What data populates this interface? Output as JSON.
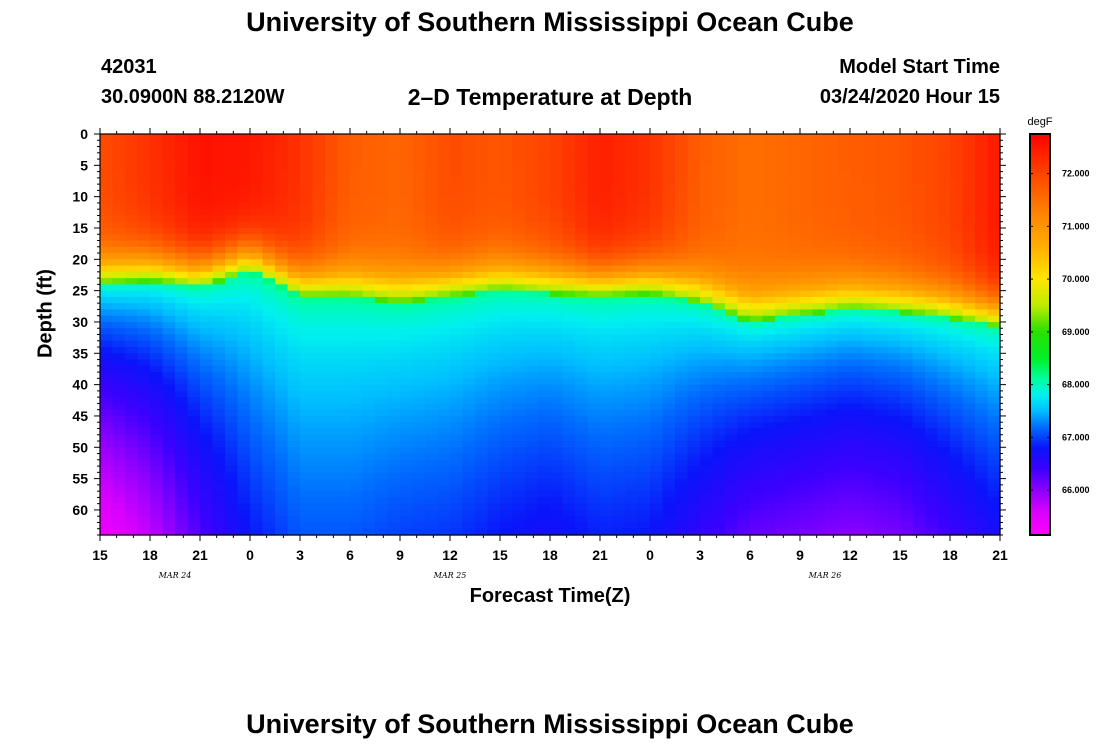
{
  "title_top": "University of Southern Mississippi Ocean Cube",
  "title_bottom": "University of Southern Mississippi Ocean Cube",
  "station": {
    "id": "42031",
    "coords": "30.0900N 88.2120W"
  },
  "model": {
    "label": "Model Start Time",
    "start": "03/24/2020 Hour 15"
  },
  "chart_data": {
    "type": "heatmap",
    "title": "2–D Temperature at Depth",
    "xlabel": "Forecast Time(Z)",
    "ylabel": "Depth (ft)",
    "x_hours": [
      0,
      3,
      6,
      9,
      12,
      15,
      18,
      21,
      24,
      27,
      30,
      33,
      36,
      39,
      42,
      45,
      48,
      51,
      54
    ],
    "x_tick_labels": [
      "15",
      "18",
      "21",
      "0",
      "3",
      "6",
      "9",
      "12",
      "15",
      "18",
      "21",
      "0",
      "3",
      "6",
      "9",
      "12",
      "15",
      "18",
      "21"
    ],
    "date_labels": [
      {
        "text": "MAR 24",
        "hour": 4.5
      },
      {
        "text": "MAR 25",
        "hour": 21
      },
      {
        "text": "MAR 26",
        "hour": 43.5
      }
    ],
    "y_ticks": [
      0,
      5,
      10,
      15,
      20,
      25,
      30,
      35,
      40,
      45,
      50,
      55,
      60
    ],
    "ylim": [
      0,
      64
    ],
    "xlim": [
      0,
      54
    ],
    "colorbar": {
      "units": "degF",
      "min": 65.15,
      "max": 72.75,
      "ticks": [
        "72.000",
        "71.000",
        "70.000",
        "69.000",
        "68.000",
        "67.000",
        "66.000"
      ],
      "tick_values": [
        72,
        71,
        70,
        69,
        68,
        67,
        66
      ]
    },
    "field": {
      "surface_temp_degF": [
        71.9,
        72.2,
        72.55,
        72.5,
        72.2,
        71.7,
        71.6,
        71.9,
        71.8,
        72.0,
        72.4,
        72.2,
        71.7,
        71.5,
        71.6,
        71.7,
        71.8,
        72.0,
        72.5
      ],
      "green_band_depth_ft": [
        24,
        23.5,
        24.5,
        22,
        26,
        26,
        27,
        26,
        25,
        25.5,
        26,
        25.5,
        27,
        30,
        29,
        28,
        28.5,
        29.5,
        31
      ],
      "deep_temp_degF": [
        65.3,
        65.7,
        66.3,
        66.8,
        67.1,
        67.1,
        67.0,
        66.95,
        66.8,
        66.7,
        66.85,
        66.8,
        66.5,
        66.2,
        66.1,
        66.0,
        66.1,
        66.4,
        66.7
      ]
    }
  }
}
